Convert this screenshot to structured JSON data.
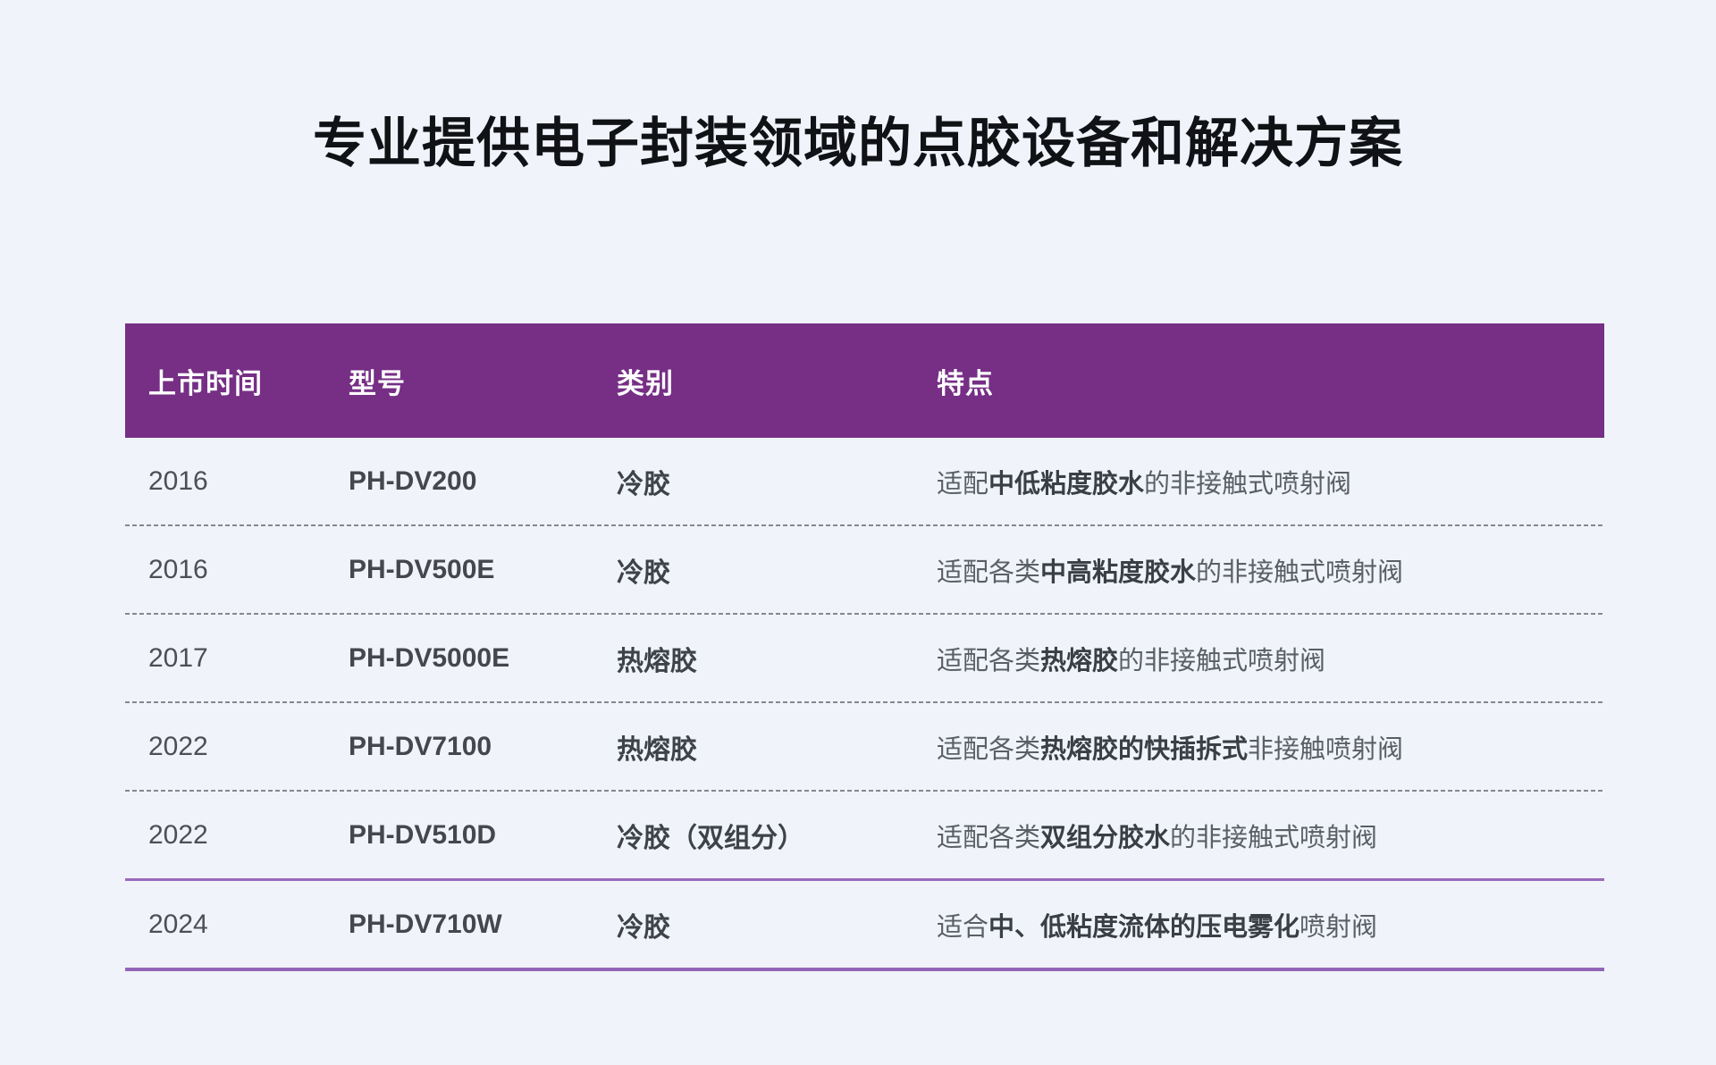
{
  "page": {
    "title": "专业提供电子封装领域的点胶设备和解决方案",
    "background_color": "#F0F3FA"
  },
  "table": {
    "header": {
      "background_color": "#762F85",
      "text_color": "#FFFFFF",
      "columns": [
        "上市时间",
        "型号",
        "类别",
        "特点"
      ]
    },
    "rows": [
      {
        "year": "2016",
        "model": "PH-DV200",
        "category": "冷胶",
        "feature": [
          {
            "text": "适配",
            "bold": false
          },
          {
            "text": "中低粘度胶水",
            "bold": true
          },
          {
            "text": "的非接触式喷射阀",
            "bold": false
          }
        ],
        "separator": "dashed"
      },
      {
        "year": "2016",
        "model": "PH-DV500E",
        "category": "冷胶",
        "feature": [
          {
            "text": "适配各类",
            "bold": false
          },
          {
            "text": "中高粘度胶水",
            "bold": true
          },
          {
            "text": "的非接触式喷射阀",
            "bold": false
          }
        ],
        "separator": "dashed"
      },
      {
        "year": "2017",
        "model": "PH-DV5000E",
        "category": "热熔胶",
        "feature": [
          {
            "text": "适配各类",
            "bold": false
          },
          {
            "text": "热熔胶",
            "bold": true
          },
          {
            "text": "的非接触式喷射阀",
            "bold": false
          }
        ],
        "separator": "dashed"
      },
      {
        "year": "2022",
        "model": "PH-DV7100",
        "category": "热熔胶",
        "feature": [
          {
            "text": "适配各类",
            "bold": false
          },
          {
            "text": "热熔胶的快插拆式",
            "bold": true
          },
          {
            "text": "非接触喷射阀",
            "bold": false
          }
        ],
        "separator": "dashed"
      },
      {
        "year": "2022",
        "model": "PH-DV510D",
        "category": "冷胶（双组分）",
        "feature": [
          {
            "text": "适配各类",
            "bold": false
          },
          {
            "text": "双组分胶水",
            "bold": true
          },
          {
            "text": "的非接触式喷射阀",
            "bold": false
          }
        ],
        "separator": "solid"
      },
      {
        "year": "2024",
        "model": "PH-DV710W",
        "category": "冷胶",
        "feature": [
          {
            "text": "适合",
            "bold": false
          },
          {
            "text": "中、低粘度流体的压电雾化",
            "bold": true
          },
          {
            "text": "喷射阀",
            "bold": false
          }
        ],
        "separator": "solid-thick"
      }
    ],
    "separator_colors": {
      "dashed": "#85888E",
      "solid": "#9A6ABC",
      "solid_thick": "#9365B8"
    }
  }
}
